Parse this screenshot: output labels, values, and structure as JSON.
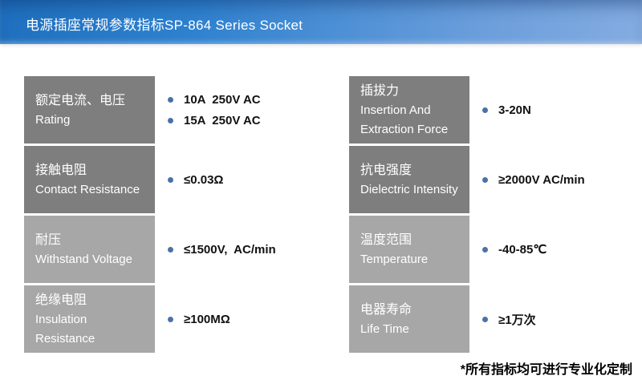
{
  "header": {
    "title": "电源插座常规参数指标SP-864 Series Socket"
  },
  "colors": {
    "header_gradient_start": "#1f6fbe",
    "header_gradient_end": "#84ace1",
    "label_dark_gray": "#7e7e7e",
    "label_light_gray": "#a7a7a7",
    "bullet_blue": "#4a72a8",
    "value_text": "#111111"
  },
  "columns": [
    {
      "rows": [
        {
          "label_zh": "额定电流、电压",
          "label_en": "Rating",
          "shade": "dark",
          "values": [
            "10A  250V AC",
            "15A  250V AC"
          ]
        },
        {
          "label_zh": "接触电阻",
          "label_en": "Contact Resistance",
          "shade": "dark",
          "values": [
            "≤0.03Ω"
          ]
        },
        {
          "label_zh": "耐压",
          "label_en": "Withstand Voltage",
          "shade": "light",
          "values": [
            "≤1500V,  AC/min"
          ]
        },
        {
          "label_zh": "绝缘电阻",
          "label_en": "Insulation Resistance",
          "shade": "light",
          "values": [
            "≥100MΩ"
          ]
        }
      ]
    },
    {
      "rows": [
        {
          "label_zh": "插拔力",
          "label_en": "Insertion And Extraction Force",
          "shade": "dark",
          "values": [
            "3-20N"
          ]
        },
        {
          "label_zh": "抗电强度",
          "label_en": "Dielectric Intensity",
          "shade": "dark",
          "values": [
            "≥2000V AC/min"
          ]
        },
        {
          "label_zh": "温度范围",
          "label_en": "Temperature",
          "shade": "light",
          "values": [
            "-40-85℃"
          ]
        },
        {
          "label_zh": "电器寿命",
          "label_en": "Life Time",
          "shade": "light",
          "values": [
            "≥1万次"
          ]
        }
      ]
    }
  ],
  "footnote": "*所有指标均可进行专业化定制"
}
